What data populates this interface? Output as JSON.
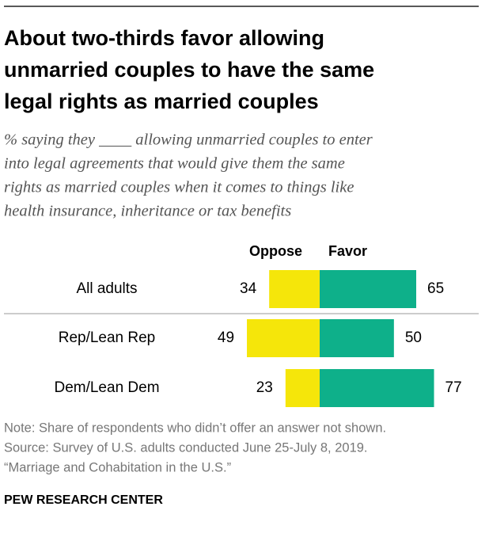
{
  "chart_data": {
    "type": "diverging_bar",
    "title": [
      "About two-thirds favor allowing",
      "unmarried couples to have the same",
      "legal rights as married couples"
    ],
    "subtitle": [
      "% saying they ____ allowing unmarried couples to enter",
      "into legal agreements that would give them the same",
      "rights as married couples when it comes to things like",
      "health insurance, inheritance or tax benefits"
    ],
    "categories": [
      "All adults",
      "Rep/Lean Rep",
      "Dem/Lean Dem"
    ],
    "series": [
      {
        "name": "Oppose",
        "color": "#f5e60a",
        "values": [
          34,
          49,
          23
        ]
      },
      {
        "name": "Favor",
        "color": "#0eb08a",
        "values": [
          65,
          50,
          77
        ]
      }
    ],
    "notes": [
      "Note: Share of respondents who didn’t offer an answer not shown.",
      "Source: Survey of U.S. adults conducted June 25-July 8, 2019.",
      "“Marriage and Cohabitation in the U.S.”"
    ],
    "footer": "PEW RESEARCH CENTER"
  }
}
